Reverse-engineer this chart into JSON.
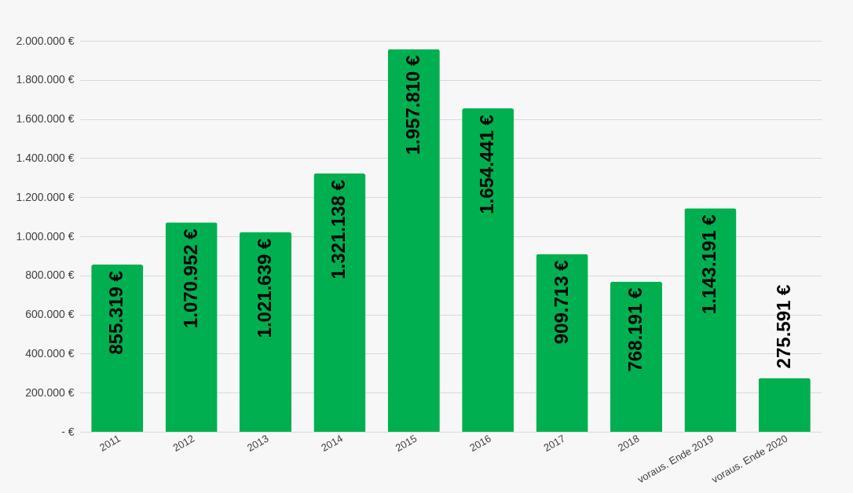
{
  "chart_data": {
    "type": "bar",
    "categories": [
      "2011",
      "2012",
      "2013",
      "2014",
      "2015",
      "2016",
      "2017",
      "2018",
      "voraus. Ende 2019",
      "voraus. Ende 2020"
    ],
    "values": [
      855319,
      1070952,
      1021639,
      1321138,
      1957810,
      1654441,
      909713,
      768191,
      1143191,
      275591
    ],
    "value_labels": [
      "855.319 €",
      "1.070.952 €",
      "1.021.639 €",
      "1.321.138 €",
      "1.957.810 €",
      "1.654.441 €",
      "909.713 €",
      "768.191 €",
      "1.143.191 €",
      "275.591 €"
    ],
    "color": "#00b050",
    "ylim": [
      0,
      2000000
    ],
    "yticks": [
      {
        "value": 0,
        "label": "-  €"
      },
      {
        "value": 200000,
        "label": "200.000 €"
      },
      {
        "value": 400000,
        "label": "400.000 €"
      },
      {
        "value": 600000,
        "label": "600.000 €"
      },
      {
        "value": 800000,
        "label": "800.000 €"
      },
      {
        "value": 1000000,
        "label": "1.000.000 €"
      },
      {
        "value": 1200000,
        "label": "1.200.000 €"
      },
      {
        "value": 1400000,
        "label": "1.400.000 €"
      },
      {
        "value": 1600000,
        "label": "1.600.000 €"
      },
      {
        "value": 1800000,
        "label": "1.800.000 €"
      },
      {
        "value": 2000000,
        "label": "2.000.000 €"
      }
    ],
    "grid": "y"
  }
}
